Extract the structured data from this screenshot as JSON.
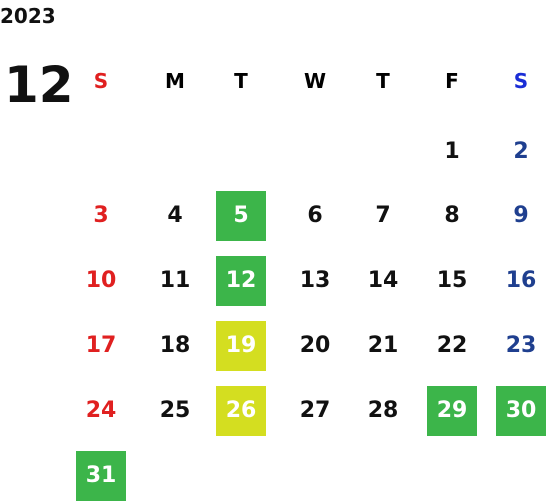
{
  "year": "2023",
  "month": "12",
  "weekday_headers": [
    "S",
    "M",
    "T",
    "W",
    "T",
    "F",
    "S"
  ],
  "colors": {
    "sunday": "#e02020",
    "saturday_header": "#1a2dd6",
    "saturday": "#1f3f8f",
    "highlight_green": "#3cb54a",
    "highlight_yellow": "#d4de20"
  },
  "days": [
    {
      "d": "1",
      "col": 5,
      "row": 0
    },
    {
      "d": "2",
      "col": 6,
      "row": 0
    },
    {
      "d": "3",
      "col": 0,
      "row": 1
    },
    {
      "d": "4",
      "col": 1,
      "row": 1
    },
    {
      "d": "5",
      "col": 2,
      "row": 1,
      "hl": "green"
    },
    {
      "d": "6",
      "col": 3,
      "row": 1
    },
    {
      "d": "7",
      "col": 4,
      "row": 1
    },
    {
      "d": "8",
      "col": 5,
      "row": 1
    },
    {
      "d": "9",
      "col": 6,
      "row": 1
    },
    {
      "d": "10",
      "col": 0,
      "row": 2
    },
    {
      "d": "11",
      "col": 1,
      "row": 2
    },
    {
      "d": "12",
      "col": 2,
      "row": 2,
      "hl": "green"
    },
    {
      "d": "13",
      "col": 3,
      "row": 2
    },
    {
      "d": "14",
      "col": 4,
      "row": 2
    },
    {
      "d": "15",
      "col": 5,
      "row": 2
    },
    {
      "d": "16",
      "col": 6,
      "row": 2
    },
    {
      "d": "17",
      "col": 0,
      "row": 3
    },
    {
      "d": "18",
      "col": 1,
      "row": 3
    },
    {
      "d": "19",
      "col": 2,
      "row": 3,
      "hl": "yellow"
    },
    {
      "d": "20",
      "col": 3,
      "row": 3
    },
    {
      "d": "21",
      "col": 4,
      "row": 3
    },
    {
      "d": "22",
      "col": 5,
      "row": 3
    },
    {
      "d": "23",
      "col": 6,
      "row": 3
    },
    {
      "d": "24",
      "col": 0,
      "row": 4
    },
    {
      "d": "25",
      "col": 1,
      "row": 4
    },
    {
      "d": "26",
      "col": 2,
      "row": 4,
      "hl": "yellow"
    },
    {
      "d": "27",
      "col": 3,
      "row": 4
    },
    {
      "d": "28",
      "col": 4,
      "row": 4
    },
    {
      "d": "29",
      "col": 5,
      "row": 4,
      "hl": "green"
    },
    {
      "d": "30",
      "col": 6,
      "row": 4,
      "hl": "green"
    },
    {
      "d": "31",
      "col": 0,
      "row": 5,
      "hl": "green"
    }
  ]
}
